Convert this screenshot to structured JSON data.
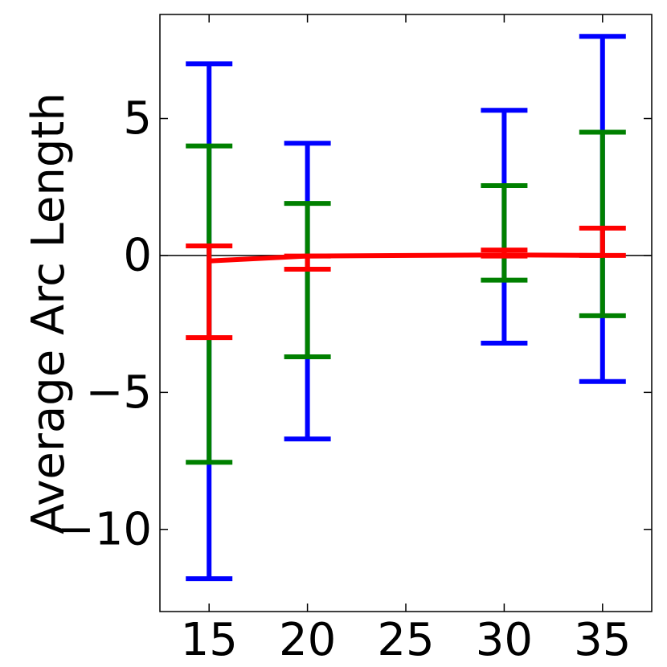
{
  "chart_data": {
    "type": "line",
    "title": "",
    "xlabel": "",
    "ylabel": "Average Arc Length",
    "xlim": [
      12.5,
      37.5
    ],
    "ylim": [
      -13,
      8.8
    ],
    "grid": false,
    "legend": "none",
    "x_ticks": [
      15,
      20,
      25,
      30,
      35
    ],
    "y_ticks": [
      {
        "value": 5,
        "label": "5"
      },
      {
        "value": 0,
        "label": "0"
      },
      {
        "value": -5,
        "label": "−5"
      },
      {
        "value": -10,
        "label": "−10"
      }
    ],
    "zero_line": true,
    "series": [
      {
        "color": "#0000ff",
        "style": "errorbar",
        "points": [
          {
            "x": 15,
            "low": -11.8,
            "high": 7.0
          },
          {
            "x": 20,
            "low": -6.7,
            "high": 4.1
          },
          {
            "x": 30,
            "low": -3.2,
            "high": 5.3
          },
          {
            "x": 35,
            "low": -4.6,
            "high": 8.0
          }
        ]
      },
      {
        "color": "#008000",
        "style": "errorbar",
        "points": [
          {
            "x": 15,
            "low": -7.55,
            "high": 4.0
          },
          {
            "x": 20,
            "low": -3.7,
            "high": 1.9
          },
          {
            "x": 30,
            "low": -0.9,
            "high": 2.55
          },
          {
            "x": 35,
            "low": -2.2,
            "high": 4.5
          }
        ]
      },
      {
        "color": "#ff0000",
        "style": "errorbar-line",
        "points": [
          {
            "x": 15,
            "y": -0.2,
            "low": -3.0,
            "high": 0.35
          },
          {
            "x": 20,
            "y": -0.02,
            "low": -0.5,
            "high": -0.02
          },
          {
            "x": 30,
            "y": 0.02,
            "low": -0.02,
            "high": 0.2
          },
          {
            "x": 35,
            "y": 0.0,
            "low": 0.0,
            "high": 1.0
          }
        ]
      }
    ]
  }
}
